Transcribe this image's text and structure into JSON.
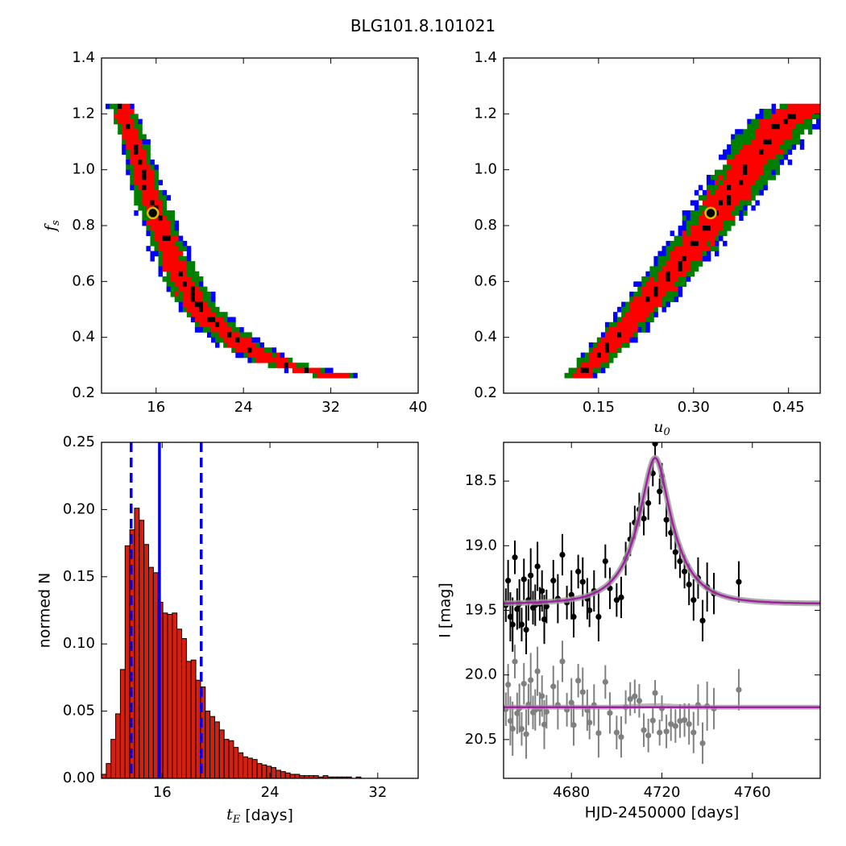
{
  "figure": {
    "title": "BLG101.8.101021"
  },
  "colors": {
    "one_sigma": "#ff0000",
    "two_sigma": "#008000",
    "three_sigma": "#0000ff",
    "samples": "#000000",
    "best_fit_ring": "#d4c000",
    "hist_bar": "#d42010",
    "hist_lines": "#0000ee",
    "model_curve": "#a020a0",
    "data_I": "#000000",
    "residuals": "#808080"
  },
  "chart_data": [
    {
      "id": "tE-fs",
      "type": "heatmap",
      "xlabel": "",
      "ylabel": "f_s",
      "xlim": [
        11,
        40
      ],
      "ylim": [
        0.2,
        1.4
      ],
      "xticks": [
        16,
        24,
        32,
        40
      ],
      "xtick_labels": [
        "16",
        "24",
        "32",
        "40"
      ],
      "yticks": [
        0.2,
        0.4,
        0.6,
        0.8,
        1.0,
        1.2,
        1.4
      ],
      "ytick_labels": [
        "0.2",
        "0.4",
        "0.6",
        "0.8",
        "1.0",
        "1.2",
        "1.4"
      ],
      "confidence_band_center": [
        [
          12.7,
          1.24
        ],
        [
          13.8,
          1.12
        ],
        [
          15.0,
          0.96
        ],
        [
          16.4,
          0.8
        ],
        [
          17.7,
          0.66
        ],
        [
          19.5,
          0.53
        ],
        [
          21.5,
          0.44
        ],
        [
          24.0,
          0.37
        ],
        [
          27.0,
          0.31
        ],
        [
          31.0,
          0.27
        ],
        [
          34.8,
          0.25
        ]
      ],
      "best_fit": {
        "x": 15.7,
        "y": 0.845
      }
    },
    {
      "id": "u0-fs",
      "type": "heatmap",
      "xlabel": "u_0",
      "ylabel": "",
      "xlim": [
        0.0,
        0.5
      ],
      "ylim": [
        0.2,
        1.4
      ],
      "xticks": [
        0.15,
        0.3,
        0.45
      ],
      "xtick_labels": [
        "0.15",
        "0.30",
        "0.45"
      ],
      "yticks": [
        0.2,
        0.4,
        0.6,
        0.8,
        1.0,
        1.2,
        1.4
      ],
      "ytick_labels": [
        "0.2",
        "0.4",
        "0.6",
        "0.8",
        "1.0",
        "1.2",
        "1.4"
      ],
      "confidence_band_center": [
        [
          0.12,
          0.26
        ],
        [
          0.16,
          0.35
        ],
        [
          0.2,
          0.45
        ],
        [
          0.24,
          0.56
        ],
        [
          0.28,
          0.67
        ],
        [
          0.32,
          0.79
        ],
        [
          0.36,
          0.92
        ],
        [
          0.4,
          1.05
        ],
        [
          0.44,
          1.17
        ],
        [
          0.49,
          1.24
        ]
      ],
      "best_fit": {
        "x": 0.327,
        "y": 0.845
      }
    },
    {
      "id": "tE-hist",
      "type": "bar",
      "xlabel": "t_E [days]",
      "ylabel": "normed N",
      "xlim": [
        11.5,
        35
      ],
      "ylim": [
        0.0,
        0.25
      ],
      "xticks": [
        16,
        24,
        32
      ],
      "xtick_labels": [
        "16",
        "24",
        "32"
      ],
      "yticks": [
        0.0,
        0.05,
        0.1,
        0.15,
        0.2,
        0.25
      ],
      "ytick_labels": [
        "0.00",
        "0.05",
        "0.10",
        "0.15",
        "0.20",
        "0.25"
      ],
      "bin_start": 11.5,
      "bin_width": 0.35,
      "values": [
        0.003,
        0.011,
        0.029,
        0.048,
        0.081,
        0.173,
        0.185,
        0.201,
        0.192,
        0.174,
        0.157,
        0.153,
        0.131,
        0.123,
        0.122,
        0.123,
        0.111,
        0.104,
        0.087,
        0.088,
        0.073,
        0.068,
        0.05,
        0.046,
        0.042,
        0.036,
        0.029,
        0.028,
        0.023,
        0.019,
        0.016,
        0.015,
        0.014,
        0.011,
        0.01,
        0.009,
        0.008,
        0.006,
        0.005,
        0.004,
        0.003,
        0.003,
        0.002,
        0.002,
        0.002,
        0.002,
        0.001,
        0.002,
        0.001,
        0.001,
        0.001,
        0.001,
        0.001,
        0.0,
        0.001,
        0.0,
        0.0,
        0.0,
        0.0,
        0.0,
        0.0,
        0.0,
        0.0,
        0.0,
        0.0,
        0.0,
        0.0
      ],
      "median": 15.8,
      "lower_bound": 13.7,
      "upper_bound": 18.9
    },
    {
      "id": "lightcurve",
      "type": "scatter",
      "xlabel": "HJD-2450000 [days]",
      "ylabel": "I [mag]",
      "xlim": [
        4650,
        4790
      ],
      "ylim": [
        20.8,
        18.2
      ],
      "xticks": [
        4680,
        4720,
        4760
      ],
      "xtick_labels": [
        "4680",
        "4720",
        "4760"
      ],
      "yticks": [
        18.5,
        19.0,
        19.5,
        20.0,
        20.5
      ],
      "ytick_labels": [
        "18.5",
        "19.0",
        "19.5",
        "20.0",
        "20.5"
      ],
      "model": {
        "t0": 4717.0,
        "tE": 16.0,
        "u0": 0.33,
        "fs": 0.85,
        "baseline_mag": 19.45
      },
      "residual_baseline_mag": 20.25,
      "observations": [
        [
          4651,
          19.46,
          0.13
        ],
        [
          4652,
          19.27,
          0.16
        ],
        [
          4653,
          19.55,
          0.19
        ],
        [
          4654,
          19.61,
          0.21
        ],
        [
          4655,
          19.09,
          0.13
        ],
        [
          4656,
          19.49,
          0.16
        ],
        [
          4657,
          19.45,
          0.19
        ],
        [
          4658,
          19.61,
          0.13
        ],
        [
          4659,
          19.26,
          0.16
        ],
        [
          4660,
          19.65,
          0.19
        ],
        [
          4661,
          19.42,
          0.16
        ],
        [
          4662,
          19.23,
          0.21
        ],
        [
          4663,
          19.48,
          0.13
        ],
        [
          4664,
          19.46,
          0.16
        ],
        [
          4665,
          19.16,
          0.19
        ],
        [
          4666,
          19.45,
          0.13
        ],
        [
          4667,
          19.35,
          0.16
        ],
        [
          4668,
          19.57,
          0.19
        ],
        [
          4669,
          19.47,
          0.13
        ],
        [
          4672,
          19.27,
          0.16
        ],
        [
          4674,
          19.41,
          0.19
        ],
        [
          4676,
          19.07,
          0.16
        ],
        [
          4678,
          19.44,
          0.13
        ],
        [
          4680,
          19.38,
          0.19
        ],
        [
          4681,
          19.55,
          0.16
        ],
        [
          4683,
          19.2,
          0.13
        ],
        [
          4685,
          19.28,
          0.19
        ],
        [
          4687,
          19.41,
          0.16
        ],
        [
          4688,
          19.5,
          0.13
        ],
        [
          4690,
          19.35,
          0.16
        ],
        [
          4692,
          19.55,
          0.19
        ],
        [
          4695,
          19.12,
          0.13
        ],
        [
          4697,
          19.33,
          0.16
        ],
        [
          4700,
          19.42,
          0.13
        ],
        [
          4702,
          19.4,
          0.16
        ],
        [
          4704,
          19.1,
          0.13
        ],
        [
          4706,
          18.95,
          0.13
        ],
        [
          4708,
          18.82,
          0.13
        ],
        [
          4710,
          18.72,
          0.13
        ],
        [
          4712,
          18.79,
          0.13
        ],
        [
          4714,
          18.67,
          0.13
        ],
        [
          4716,
          18.44,
          0.1
        ],
        [
          4717,
          18.21,
          0.1
        ],
        [
          4719,
          18.58,
          0.1
        ],
        [
          4720,
          18.46,
          0.1
        ],
        [
          4722,
          18.8,
          0.13
        ],
        [
          4724,
          18.9,
          0.13
        ],
        [
          4726,
          19.05,
          0.13
        ],
        [
          4728,
          19.12,
          0.13
        ],
        [
          4730,
          19.2,
          0.13
        ],
        [
          4732,
          19.3,
          0.16
        ],
        [
          4734,
          19.42,
          0.16
        ],
        [
          4736,
          19.25,
          0.16
        ],
        [
          4738,
          19.58,
          0.16
        ],
        [
          4740,
          19.32,
          0.19
        ],
        [
          4743,
          19.37,
          0.16
        ],
        [
          4754,
          19.28,
          0.16
        ]
      ]
    }
  ]
}
